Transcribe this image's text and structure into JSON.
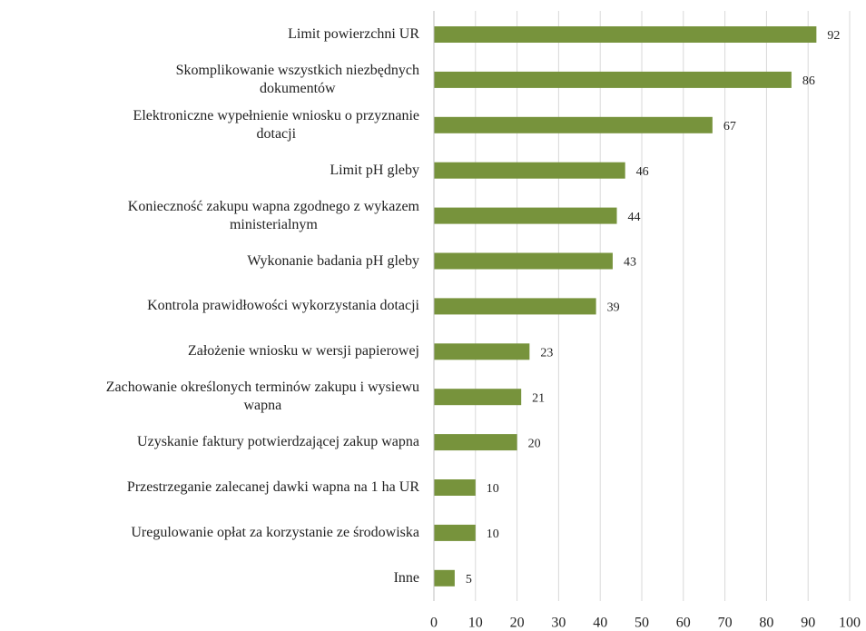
{
  "chart_data": {
    "type": "bar",
    "orientation": "horizontal",
    "categories": [
      "Limit powierzchni UR",
      "Skomplikowanie wszystkich niezbędnych\ndokumentów",
      "Elektroniczne wypełnienie wniosku o przyznanie\ndotacji",
      "Limit pH gleby",
      "Konieczność zakupu wapna zgodnego z wykazem\nministerialnym",
      "Wykonanie badania pH gleby",
      "Kontrola prawidłowości wykorzystania dotacji",
      "Założenie wniosku w wersji papierowej",
      "Zachowanie określonych terminów zakupu i wysiewu\nwapna",
      "Uzyskanie faktury potwierdzającej zakup wapna",
      "Przestrzeganie zalecanej dawki wapna na 1 ha UR",
      "Uregulowanie opłat za korzystanie ze środowiska",
      "Inne"
    ],
    "values": [
      92,
      86,
      67,
      46,
      44,
      43,
      39,
      23,
      21,
      20,
      10,
      10,
      5
    ],
    "color": "#77933c",
    "xlim": [
      0,
      100
    ],
    "xticks": [
      0,
      10,
      20,
      30,
      40,
      50,
      60,
      70,
      80,
      90,
      100
    ],
    "grid": true
  }
}
